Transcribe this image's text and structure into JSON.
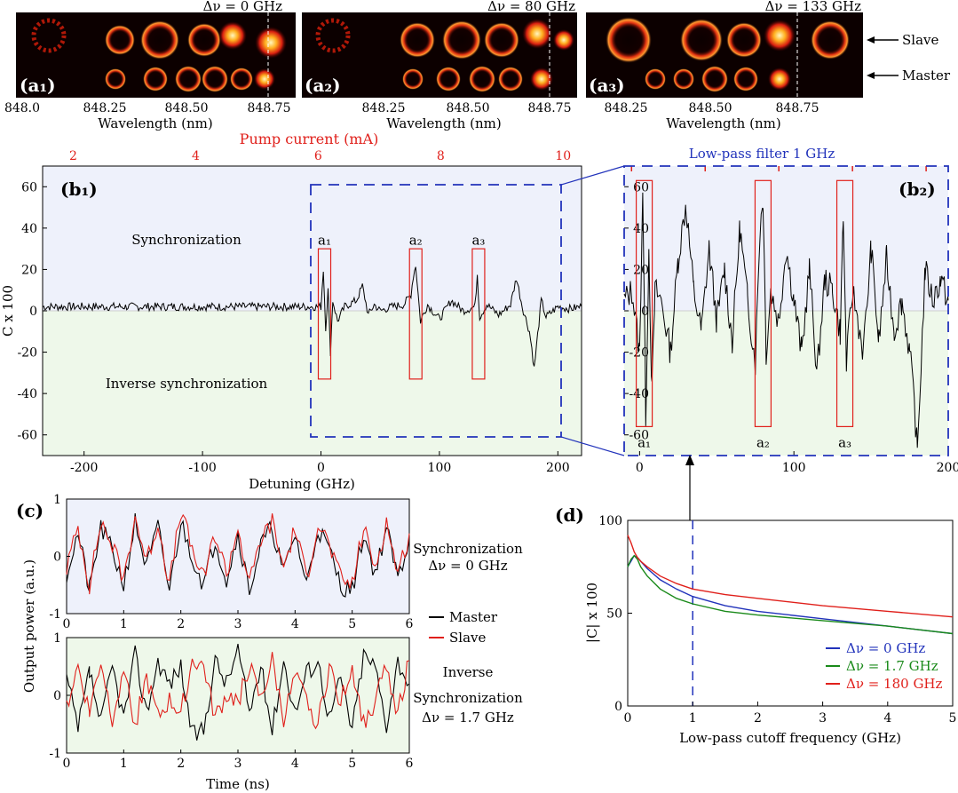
{
  "colors": {
    "red": "#e0201b",
    "blue": "#2233bb",
    "green": "#1a8a1a",
    "sync_bg": "#eef1fb",
    "inv_bg": "#eef8ea"
  },
  "spectra": {
    "xlabel": "Wavelength (nm)",
    "slave_label": "Slave",
    "master_label": "Master",
    "panels": [
      {
        "label": "(a₁)",
        "detuning_label": "Δν = 0 GHz",
        "ticks": [
          "848.0",
          "848.25",
          "848.50",
          "848.75"
        ]
      },
      {
        "label": "(a₂)",
        "detuning_label": "Δν = 80 GHz",
        "ticks": [
          "848.25",
          "848.50",
          "848.75"
        ]
      },
      {
        "label": "(a₃)",
        "detuning_label": "Δν = 133 GHz",
        "ticks": [
          "848.25",
          "848.50",
          "848.75"
        ]
      }
    ]
  },
  "chart_data": [
    {
      "id": "b1",
      "type": "line",
      "panel_label": "(b₁)",
      "xlabel": "Detuning (GHz)",
      "ylabel": "C x 100",
      "top_xlabel": "Pump current (mA)",
      "xlim": [
        -235,
        220
      ],
      "ylim": [
        -70,
        70
      ],
      "top_xlim": [
        1.5,
        10.3
      ],
      "x_ticks": [
        "-200",
        "-100",
        "0",
        "100",
        "200"
      ],
      "y_ticks": [
        "-60",
        "-40",
        "-20",
        "0",
        "20",
        "40",
        "60"
      ],
      "top_ticks": [
        "2",
        "4",
        "6",
        "8",
        "10"
      ],
      "region_labels": [
        "Synchronization",
        "Inverse synchronization"
      ],
      "markers": [
        {
          "label": "a₁",
          "x": 3
        },
        {
          "label": "a₂",
          "x": 80
        },
        {
          "label": "a₃",
          "x": 133
        }
      ],
      "series": [
        {
          "values_x": [
            -235,
            -200,
            -150,
            -100,
            -50,
            -10,
            0,
            2,
            4,
            6,
            8,
            10,
            14,
            20,
            30,
            35,
            40,
            45,
            50,
            60,
            70,
            76,
            78,
            80,
            84,
            90,
            100,
            110,
            120,
            130,
            132,
            134,
            140,
            150,
            160,
            165,
            170,
            176,
            178,
            180,
            186,
            190,
            200,
            210,
            220
          ],
          "values_y": [
            2,
            2,
            2,
            2,
            2,
            2,
            2,
            20,
            -8,
            10,
            -20,
            5,
            -5,
            2,
            5,
            12,
            -2,
            3,
            0,
            2,
            3,
            8,
            17,
            22,
            -5,
            3,
            -4,
            5,
            0,
            2,
            18,
            -3,
            3,
            -2,
            3,
            16,
            2,
            -10,
            -18,
            -28,
            5,
            -3,
            2,
            1,
            2
          ]
        }
      ]
    },
    {
      "id": "b2",
      "type": "line",
      "panel_label": "(b₂)",
      "title": "Low-pass filter 1 GHz",
      "xlim": [
        -10,
        200
      ],
      "ylim": [
        -70,
        70
      ],
      "x_ticks": [
        "0",
        "100",
        "200"
      ],
      "y_ticks": [
        "-60",
        "-40",
        "-20",
        "0",
        "20",
        "40",
        "60"
      ],
      "markers": [
        {
          "label": "a₁",
          "x": 3
        },
        {
          "label": "a₂",
          "x": 80
        },
        {
          "label": "a₃",
          "x": 133
        }
      ],
      "series": [
        {
          "values_x": [
            -10,
            -5,
            0,
            2,
            4,
            6,
            8,
            10,
            14,
            20,
            25,
            30,
            35,
            40,
            45,
            50,
            55,
            60,
            65,
            70,
            75,
            78,
            80,
            82,
            85,
            90,
            95,
            100,
            105,
            110,
            115,
            120,
            125,
            130,
            132,
            134,
            138,
            145,
            150,
            155,
            160,
            165,
            170,
            175,
            178,
            180,
            185,
            190,
            195,
            200
          ],
          "values_y": [
            5,
            10,
            -20,
            60,
            -50,
            30,
            -40,
            10,
            5,
            -20,
            25,
            52,
            10,
            -10,
            30,
            -5,
            20,
            -15,
            40,
            5,
            -25,
            40,
            55,
            -20,
            10,
            -5,
            30,
            5,
            -20,
            20,
            -30,
            15,
            10,
            -10,
            45,
            -25,
            10,
            -20,
            30,
            -15,
            25,
            -10,
            5,
            -20,
            -45,
            -68,
            20,
            5,
            15,
            5
          ]
        }
      ]
    },
    {
      "id": "c_sync",
      "type": "line",
      "annotation": [
        "Synchronization",
        "Δν = 0 GHz"
      ],
      "xlabel": "",
      "ylabel": "Output power (a.u.)",
      "xlim": [
        0,
        6
      ],
      "ylim": [
        -1,
        1
      ],
      "x_ticks": [
        "0",
        "1",
        "2",
        "3",
        "4",
        "5",
        "6"
      ],
      "y_ticks": [
        "-1",
        "0",
        "1"
      ],
      "series": [
        {
          "name": "Master",
          "x": [
            0,
            0.2,
            0.4,
            0.6,
            0.8,
            1.0,
            1.2,
            1.4,
            1.6,
            1.8,
            2.0,
            2.2,
            2.4,
            2.6,
            2.8,
            3.0,
            3.2,
            3.4,
            3.6,
            3.8,
            4.0,
            4.2,
            4.4,
            4.6,
            4.8,
            5.0,
            5.2,
            5.4,
            5.6,
            5.8,
            6.0
          ],
          "y": [
            -0.3,
            0.4,
            -0.6,
            0.5,
            0.1,
            -0.5,
            0.6,
            -0.2,
            0.5,
            -0.6,
            0.6,
            0.0,
            -0.5,
            0.3,
            -0.4,
            0.4,
            -0.6,
            0.2,
            0.5,
            -0.3,
            0.4,
            -0.5,
            0.5,
            0.1,
            -0.5,
            -0.6,
            0.4,
            -0.3,
            0.5,
            -0.4,
            0.3
          ]
        },
        {
          "name": "Slave",
          "x": [
            0,
            0.2,
            0.4,
            0.6,
            0.8,
            1.0,
            1.2,
            1.4,
            1.6,
            1.8,
            2.0,
            2.2,
            2.4,
            2.6,
            2.8,
            3.0,
            3.2,
            3.4,
            3.6,
            3.8,
            4.0,
            4.2,
            4.4,
            4.6,
            4.8,
            5.0,
            5.2,
            5.4,
            5.6,
            5.8,
            6.0
          ],
          "y": [
            -0.2,
            0.5,
            -0.5,
            0.6,
            0.2,
            -0.4,
            0.7,
            -0.1,
            0.6,
            -0.5,
            0.8,
            0.1,
            -0.4,
            0.4,
            -0.3,
            0.5,
            -0.5,
            0.3,
            0.6,
            -0.2,
            0.5,
            -0.4,
            0.6,
            0.2,
            -0.4,
            -0.5,
            0.5,
            -0.2,
            0.6,
            -0.3,
            0.4
          ]
        }
      ]
    },
    {
      "id": "c_inverse",
      "type": "line",
      "annotation": [
        "Inverse",
        "Synchronization",
        "Δν = 1.7 GHz"
      ],
      "xlabel": "Time (ns)",
      "ylabel": "Output power (a.u.)",
      "xlim": [
        0,
        6
      ],
      "ylim": [
        -1,
        1
      ],
      "x_ticks": [
        "0",
        "1",
        "2",
        "3",
        "4",
        "5",
        "6"
      ],
      "y_ticks": [
        "-1",
        "0",
        "1"
      ],
      "series": [
        {
          "name": "Master",
          "x": [
            0,
            0.2,
            0.4,
            0.6,
            0.8,
            1.0,
            1.2,
            1.4,
            1.6,
            1.8,
            2.0,
            2.2,
            2.4,
            2.6,
            2.8,
            3.0,
            3.2,
            3.4,
            3.6,
            3.8,
            4.0,
            4.2,
            4.4,
            4.6,
            4.8,
            5.0,
            5.2,
            5.4,
            5.6,
            5.8,
            6.0
          ],
          "y": [
            0.3,
            -0.6,
            0.4,
            -0.5,
            0.5,
            -0.4,
            0.7,
            -0.3,
            0.6,
            0.2,
            0.5,
            -0.7,
            -0.6,
            0.6,
            0.2,
            0.8,
            -0.3,
            0.5,
            -0.6,
            0.6,
            -0.3,
            0.4,
            0.6,
            -0.4,
            0.3,
            -0.6,
            0.7,
            0.5,
            -0.5,
            0.6,
            0.2
          ]
        },
        {
          "name": "Slave",
          "x": [
            0,
            0.2,
            0.4,
            0.6,
            0.8,
            1.0,
            1.2,
            1.4,
            1.6,
            1.8,
            2.0,
            2.2,
            2.4,
            2.6,
            2.8,
            3.0,
            3.2,
            3.4,
            3.6,
            3.8,
            4.0,
            4.2,
            4.4,
            4.6,
            4.8,
            5.0,
            5.2,
            5.4,
            5.6,
            5.8,
            6.0
          ],
          "y": [
            -0.2,
            0.5,
            -0.3,
            0.6,
            -0.4,
            0.5,
            -0.5,
            0.3,
            -0.4,
            -0.1,
            -0.3,
            0.6,
            0.5,
            -0.4,
            0.0,
            -0.1,
            0.5,
            -0.1,
            0.6,
            -0.4,
            0.3,
            -0.1,
            -0.5,
            0.5,
            -0.1,
            0.5,
            -0.5,
            -0.1,
            0.5,
            -0.3,
            0.6
          ]
        }
      ]
    },
    {
      "id": "d",
      "type": "line",
      "panel_label": "(d)",
      "xlabel": "Low-pass cutoff frequency (GHz)",
      "ylabel": "|C| x 100",
      "xlim": [
        0,
        5
      ],
      "ylim": [
        0,
        100
      ],
      "x_ticks": [
        "0",
        "1",
        "2",
        "3",
        "4",
        "5"
      ],
      "y_ticks": [
        "0",
        "50",
        "100"
      ],
      "cutoff_marker_x": 1,
      "series": [
        {
          "name": "Δν = 0 GHz",
          "color": "#2233bb",
          "x": [
            0,
            0.05,
            0.1,
            0.15,
            0.2,
            0.3,
            0.5,
            0.75,
            1,
            1.5,
            2,
            3,
            4,
            5
          ],
          "y": [
            75,
            78,
            81,
            80,
            78,
            74,
            68,
            63,
            59,
            54,
            51,
            47,
            43,
            39
          ]
        },
        {
          "name": "Δν = 1.7 GHz",
          "color": "#1a8a1a",
          "x": [
            0,
            0.05,
            0.1,
            0.15,
            0.2,
            0.3,
            0.5,
            0.75,
            1,
            1.5,
            2,
            3,
            4,
            5
          ],
          "y": [
            75,
            79,
            81,
            79,
            75,
            70,
            63,
            58,
            55,
            51,
            49,
            46,
            43,
            39
          ]
        },
        {
          "name": "Δν = 180 GHz",
          "color": "#e0201b",
          "x": [
            0,
            0.05,
            0.1,
            0.15,
            0.2,
            0.3,
            0.5,
            0.75,
            1,
            1.5,
            2,
            3,
            4,
            5
          ],
          "y": [
            92,
            88,
            83,
            80,
            78,
            75,
            70,
            66,
            63,
            60,
            58,
            54,
            51,
            48
          ]
        }
      ]
    }
  ]
}
